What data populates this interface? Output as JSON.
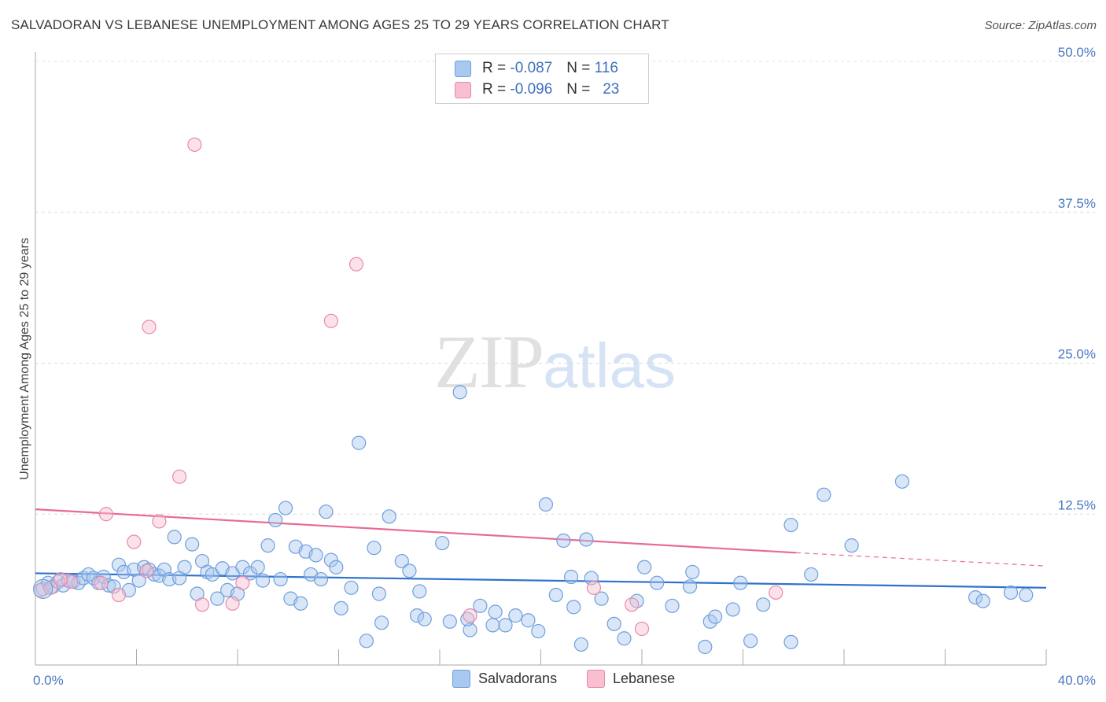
{
  "header": {
    "title": "SALVADORAN VS LEBANESE UNEMPLOYMENT AMONG AGES 25 TO 29 YEARS CORRELATION CHART",
    "source": "Source: ZipAtlas.com"
  },
  "watermark": {
    "zip": "ZIP",
    "atlas": "atlas"
  },
  "legend": {
    "rows": [
      {
        "r_label": "R =",
        "r_value": "-0.087",
        "n_label": "N =",
        "n_value": "116",
        "color": "#a9c8f0",
        "border": "#6f9fdc"
      },
      {
        "r_label": "R =",
        "r_value": "-0.096",
        "n_label": "N =",
        "n_value": "23",
        "color": "#f7bfd0",
        "border": "#e88aa8"
      }
    ]
  },
  "bottom_legend": {
    "items": [
      "Salvadorans",
      "Lebanese"
    ]
  },
  "chart_data": {
    "type": "scatter",
    "title": "SALVADORAN VS LEBANESE UNEMPLOYMENT AMONG AGES 25 TO 29 YEARS CORRELATION CHART",
    "xlabel": "",
    "ylabel": "Unemployment Among Ages 25 to 29 years",
    "xlim": [
      0,
      40
    ],
    "ylim": [
      0,
      50
    ],
    "x_tick_labels": [
      "0.0%",
      "40.0%"
    ],
    "y_ticks": [
      12.5,
      25.0,
      37.5,
      50.0
    ],
    "y_tick_labels": [
      "12.5%",
      "25.0%",
      "37.5%",
      "50.0%"
    ],
    "grid": true,
    "legend_position": "top-center",
    "colors": {
      "Salvadorans": "#6f9fdc",
      "Lebanese": "#e88aa8",
      "blue_line": "#2f72cc",
      "pink_line": "#e86a94"
    },
    "series": [
      {
        "name": "Salvadorans",
        "points": [
          [
            0.3,
            6.3
          ],
          [
            0.5,
            6.8
          ],
          [
            0.7,
            6.5
          ],
          [
            0.9,
            6.9
          ],
          [
            1.1,
            6.6
          ],
          [
            1.3,
            7.0
          ],
          [
            1.5,
            6.9
          ],
          [
            1.7,
            6.8
          ],
          [
            1.9,
            7.2
          ],
          [
            2.1,
            7.5
          ],
          [
            2.3,
            7.2
          ],
          [
            2.5,
            6.8
          ],
          [
            2.7,
            7.3
          ],
          [
            2.9,
            6.6
          ],
          [
            3.1,
            6.5
          ],
          [
            3.3,
            8.3
          ],
          [
            3.5,
            7.7
          ],
          [
            3.7,
            6.2
          ],
          [
            3.9,
            7.9
          ],
          [
            4.1,
            7.0
          ],
          [
            4.3,
            8.1
          ],
          [
            4.5,
            7.9
          ],
          [
            4.7,
            7.5
          ],
          [
            4.9,
            7.4
          ],
          [
            5.1,
            7.9
          ],
          [
            5.3,
            7.1
          ],
          [
            5.5,
            10.6
          ],
          [
            5.7,
            7.2
          ],
          [
            5.9,
            8.1
          ],
          [
            6.2,
            10.0
          ],
          [
            6.4,
            5.9
          ],
          [
            6.6,
            8.6
          ],
          [
            6.8,
            7.7
          ],
          [
            7.0,
            7.5
          ],
          [
            7.2,
            5.5
          ],
          [
            7.4,
            8.0
          ],
          [
            7.6,
            6.2
          ],
          [
            7.8,
            7.6
          ],
          [
            8.0,
            5.9
          ],
          [
            8.2,
            8.1
          ],
          [
            8.5,
            7.6
          ],
          [
            8.8,
            8.1
          ],
          [
            9.0,
            7.0
          ],
          [
            9.2,
            9.9
          ],
          [
            9.5,
            12.0
          ],
          [
            9.7,
            7.1
          ],
          [
            9.9,
            13.0
          ],
          [
            10.1,
            5.5
          ],
          [
            10.3,
            9.8
          ],
          [
            10.5,
            5.1
          ],
          [
            10.7,
            9.4
          ],
          [
            10.9,
            7.5
          ],
          [
            11.1,
            9.1
          ],
          [
            11.3,
            7.1
          ],
          [
            11.5,
            12.7
          ],
          [
            11.7,
            8.7
          ],
          [
            11.9,
            8.1
          ],
          [
            12.1,
            4.7
          ],
          [
            12.5,
            6.4
          ],
          [
            12.8,
            18.4
          ],
          [
            13.1,
            2.0
          ],
          [
            13.4,
            9.7
          ],
          [
            13.6,
            5.9
          ],
          [
            13.7,
            3.5
          ],
          [
            14.0,
            12.3
          ],
          [
            14.5,
            8.6
          ],
          [
            14.8,
            7.8
          ],
          [
            15.1,
            4.1
          ],
          [
            15.2,
            6.1
          ],
          [
            15.4,
            3.8
          ],
          [
            16.1,
            10.1
          ],
          [
            16.4,
            3.6
          ],
          [
            16.8,
            22.6
          ],
          [
            17.2,
            2.9
          ],
          [
            17.6,
            4.9
          ],
          [
            18.1,
            3.3
          ],
          [
            18.2,
            4.4
          ],
          [
            18.6,
            3.3
          ],
          [
            19.0,
            4.1
          ],
          [
            19.5,
            3.7
          ],
          [
            19.9,
            2.8
          ],
          [
            20.2,
            13.3
          ],
          [
            20.6,
            5.8
          ],
          [
            20.9,
            10.3
          ],
          [
            21.2,
            7.3
          ],
          [
            21.3,
            4.8
          ],
          [
            21.6,
            1.7
          ],
          [
            21.8,
            10.4
          ],
          [
            22.0,
            7.2
          ],
          [
            22.4,
            5.5
          ],
          [
            22.9,
            3.4
          ],
          [
            23.3,
            2.2
          ],
          [
            23.8,
            5.3
          ],
          [
            24.1,
            8.1
          ],
          [
            24.6,
            6.8
          ],
          [
            25.2,
            4.9
          ],
          [
            25.9,
            6.5
          ],
          [
            26.0,
            7.7
          ],
          [
            26.5,
            1.5
          ],
          [
            26.7,
            3.6
          ],
          [
            26.9,
            4.0
          ],
          [
            27.6,
            4.6
          ],
          [
            27.9,
            6.8
          ],
          [
            28.3,
            2.0
          ],
          [
            28.8,
            5.0
          ],
          [
            29.9,
            11.6
          ],
          [
            29.9,
            1.9
          ],
          [
            30.7,
            7.5
          ],
          [
            31.2,
            14.1
          ],
          [
            32.3,
            9.9
          ],
          [
            34.3,
            15.2
          ],
          [
            37.2,
            5.6
          ],
          [
            37.5,
            5.3
          ],
          [
            38.6,
            6.0
          ],
          [
            39.2,
            5.8
          ],
          [
            17.1,
            3.8
          ]
        ]
      },
      {
        "name": "Lebanese",
        "points": [
          [
            0.2,
            6.2
          ],
          [
            0.6,
            6.4
          ],
          [
            1.4,
            6.9
          ],
          [
            2.6,
            6.8
          ],
          [
            2.8,
            12.5
          ],
          [
            3.3,
            5.8
          ],
          [
            3.9,
            10.2
          ],
          [
            4.4,
            7.8
          ],
          [
            4.5,
            28.0
          ],
          [
            4.9,
            11.9
          ],
          [
            5.7,
            15.6
          ],
          [
            6.3,
            43.1
          ],
          [
            6.6,
            5.0
          ],
          [
            7.8,
            5.1
          ],
          [
            8.2,
            6.8
          ],
          [
            11.7,
            28.5
          ],
          [
            12.7,
            33.2
          ],
          [
            17.2,
            4.1
          ],
          [
            22.1,
            6.4
          ],
          [
            23.6,
            5.0
          ],
          [
            24.0,
            3.0
          ],
          [
            29.3,
            6.0
          ],
          [
            1.0,
            7.1
          ]
        ]
      }
    ],
    "trend_lines": [
      {
        "series": "Salvadorans",
        "x": [
          0,
          40
        ],
        "y": [
          7.6,
          6.4
        ]
      },
      {
        "series": "Lebanese",
        "x": [
          0,
          30.1
        ],
        "y": [
          12.9,
          9.3
        ],
        "dashed_extension": {
          "x": [
            30.1,
            40
          ],
          "y": [
            9.3,
            8.2
          ]
        }
      }
    ]
  }
}
